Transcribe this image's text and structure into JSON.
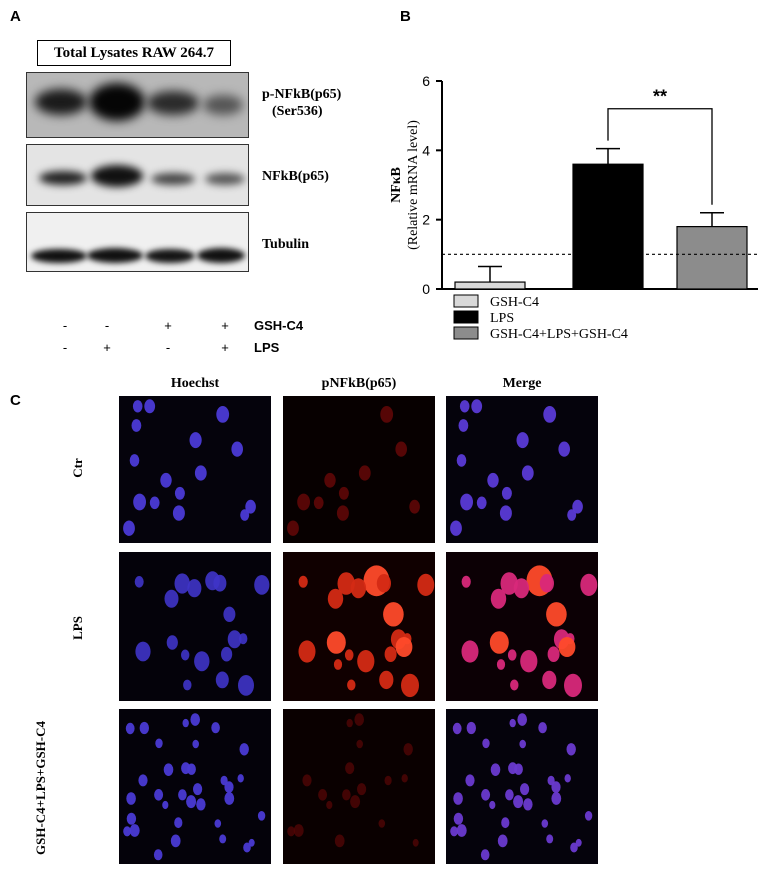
{
  "panels": {
    "a": "A",
    "b": "B",
    "c": "C"
  },
  "blot": {
    "title": "Total Lysates RAW 264.7",
    "labels": {
      "p_nfkb_line1": "p-NFkB(p65)",
      "p_nfkb_line2": "(Ser536)",
      "nfkb": "NFkB(p65)",
      "tubulin": "Tubulin"
    },
    "treatments": {
      "gsh_label": "GSH-C4",
      "lps_label": "LPS",
      "gsh": [
        "-",
        "-",
        "+",
        "+"
      ],
      "lps": [
        "-",
        "+",
        "-",
        "+"
      ]
    }
  },
  "chart_data": {
    "type": "bar",
    "categories": [
      "GSH-C4",
      "LPS",
      "GSH-C4+LPS+GSH-C4"
    ],
    "values": [
      0.2,
      3.6,
      1.8
    ],
    "errors": [
      0.45,
      0.45,
      0.4
    ],
    "colors": [
      "#d9d9d9",
      "#000000",
      "#8c8c8c"
    ],
    "ylabel_line1": "NFκB",
    "ylabel_line2": "(Relative mRNA level)",
    "ylim": [
      0,
      6
    ],
    "yticks": [
      0,
      2,
      4,
      6
    ],
    "reference_line": 1,
    "significance": {
      "label": "**",
      "between": [
        1,
        2
      ]
    },
    "legend": [
      "GSH-C4",
      "LPS",
      "GSH-C4+LPS+GSH-C4"
    ],
    "legend_position": "bottom"
  },
  "micrographs": {
    "columns": [
      "Hoechst",
      "pNFkB(p65)",
      "Merge"
    ],
    "rows": [
      "Ctr",
      "LPS",
      "GSH-C4+LPS+GSH-C4"
    ]
  }
}
